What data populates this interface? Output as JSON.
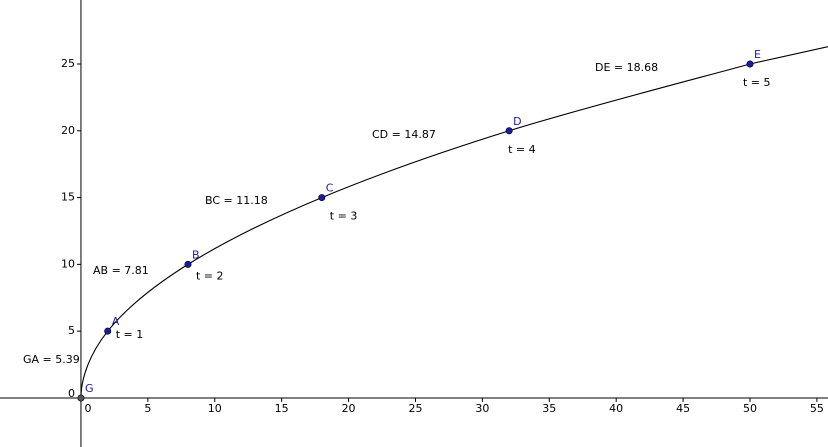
{
  "chart_data": {
    "type": "scatter",
    "x": [
      0,
      2,
      8,
      18,
      32,
      50
    ],
    "values": [
      0,
      5,
      10,
      15,
      20,
      25
    ],
    "point_labels": [
      "G",
      "A",
      "B",
      "C",
      "D",
      "E"
    ],
    "t_labels": [
      null,
      "t = 1",
      "t = 2",
      "t = 3",
      "t = 4",
      "t = 5"
    ],
    "segment_labels": [
      "GA = 5.39",
      "AB = 7.81",
      "BC = 11.18",
      "CD = 14.87",
      "DE = 18.68"
    ],
    "color": "#1a1aa6",
    "xlim": [
      -6.05,
      55.83
    ],
    "ylim": [
      -3.67,
      29.79
    ],
    "xticks": [
      0,
      5,
      10,
      15,
      20,
      25,
      30,
      35,
      40,
      45,
      50,
      55
    ],
    "yticks": [
      0,
      5,
      10,
      15,
      20,
      25
    ],
    "grid": false
  }
}
